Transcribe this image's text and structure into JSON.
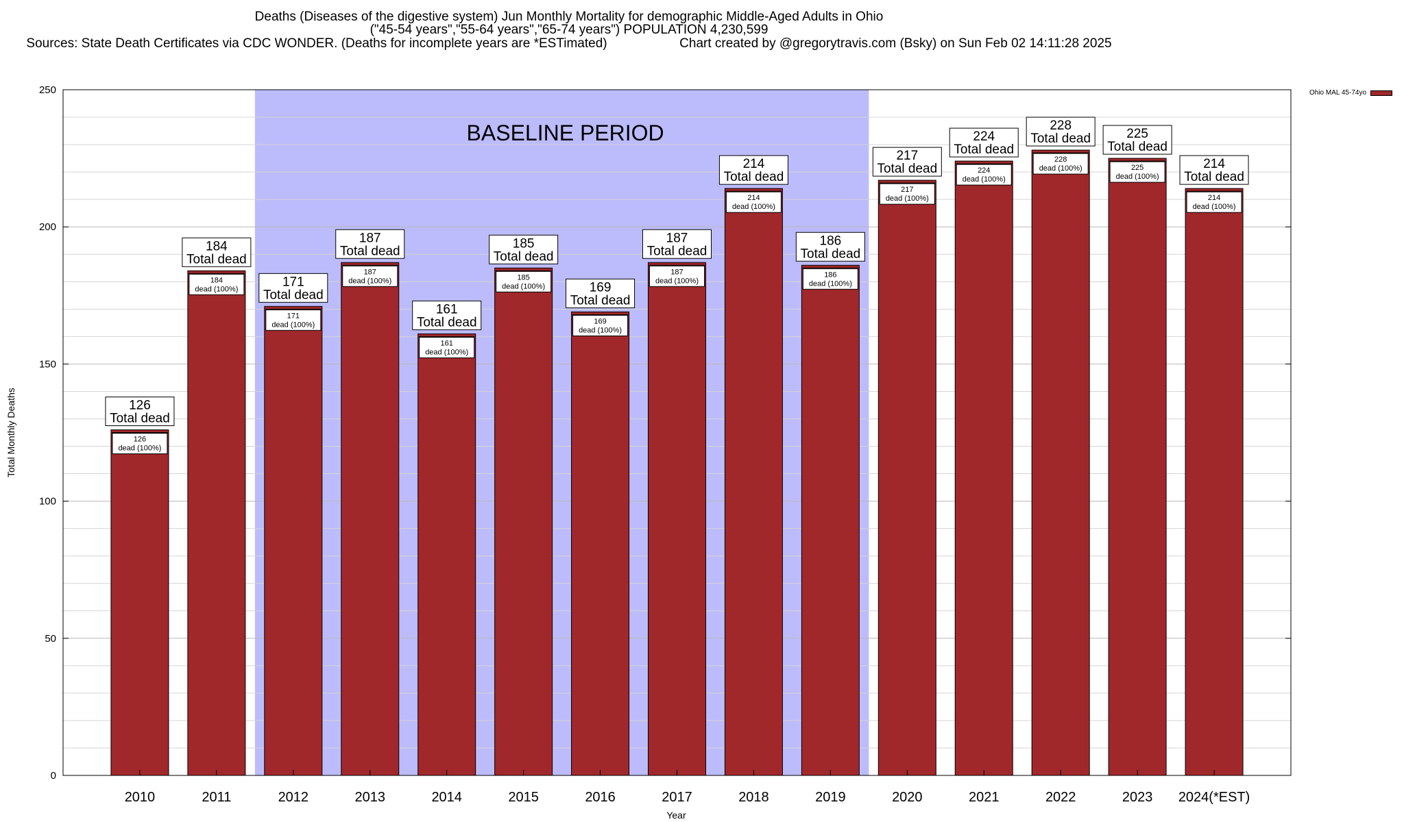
{
  "chart_data": {
    "type": "bar",
    "title_lines": [
      "Deaths (Diseases of the digestive system) Jun Monthly Mortality for demographic Middle-Aged Adults in Ohio",
      "(\"45-54 years\",\"55-64 years\",\"65-74 years\") POPULATION 4,230,599",
      "Sources: State Death Certificates via CDC WONDER. (Deaths for incomplete years are *ESTimated)"
    ],
    "credit": "Chart created by @gregorytravis.com (Bsky) on Sun Feb 02 14:11:28 2025",
    "xlabel": "Year",
    "ylabel": "Total Monthly Deaths",
    "ylim": [
      0,
      250
    ],
    "yticks": [
      0,
      50,
      100,
      150,
      200,
      250
    ],
    "categories": [
      "2010",
      "2011",
      "2012",
      "2013",
      "2014",
      "2015",
      "2016",
      "2017",
      "2018",
      "2019",
      "2020",
      "2021",
      "2022",
      "2023",
      "2024(*EST)"
    ],
    "values": [
      126,
      184,
      171,
      187,
      161,
      185,
      169,
      187,
      214,
      186,
      217,
      224,
      228,
      225,
      214
    ],
    "series_name": "Ohio MAL 45-74yo",
    "bar_color": "#a0282b",
    "baseline_color": "#bcbcfc",
    "baseline_label": "BASELINE PERIOD",
    "baseline_range": [
      "2012",
      "2019"
    ],
    "total_label_suffix": "Total dead",
    "inner_label_suffix": "dead (100%)",
    "legend_position": "top-right"
  }
}
